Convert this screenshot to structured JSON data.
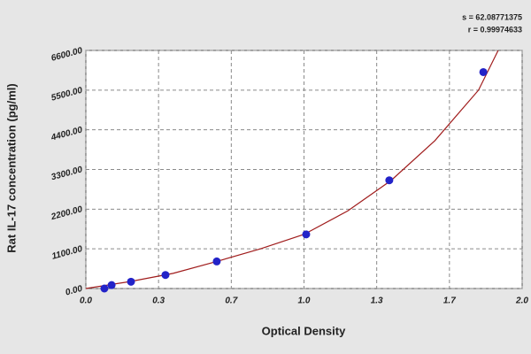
{
  "chart_data": {
    "type": "scatter",
    "x_label": "Optical Density",
    "y_label": "Rat IL-17 concentration (pg/ml)",
    "annotations": [
      "s = 62.08771375",
      "r = 0.99974633"
    ],
    "xlim": [
      0,
      2
    ],
    "ylim": [
      0,
      6600
    ],
    "xticks": [
      {
        "value": 0,
        "label": "0.0"
      },
      {
        "value": 0.3333,
        "label": "0.3"
      },
      {
        "value": 0.6667,
        "label": "0.7"
      },
      {
        "value": 1,
        "label": "1.0"
      },
      {
        "value": 1.3333,
        "label": "1.3"
      },
      {
        "value": 1.6667,
        "label": "1.7"
      },
      {
        "value": 2,
        "label": "2.0"
      }
    ],
    "yticks": [
      {
        "value": 0,
        "label": "0.00"
      },
      {
        "value": 1100,
        "label": "1100.00"
      },
      {
        "value": 2200,
        "label": "2200.00"
      },
      {
        "value": 3300,
        "label": "3300.00"
      },
      {
        "value": 4400,
        "label": "4400.00"
      },
      {
        "value": 5500,
        "label": "5500.00"
      },
      {
        "value": 6600,
        "label": "6600.00"
      }
    ],
    "grid": true,
    "series": [
      {
        "kind": "line",
        "color": "#a01c1c",
        "x": [
          0,
          0.2,
          0.4,
          0.6,
          0.8,
          1.0,
          1.2,
          1.4,
          1.6,
          1.8,
          1.89
        ],
        "values": [
          0,
          190,
          420,
          750,
          1100,
          1500,
          2150,
          3000,
          4100,
          5500,
          6600
        ]
      },
      {
        "kind": "points",
        "color": "#2323c8",
        "x": [
          0.085,
          0.118,
          0.207,
          0.365,
          0.6,
          1.01,
          1.391,
          1.822
        ],
        "values": [
          0,
          94,
          188,
          375,
          750,
          1500,
          3000,
          6000
        ]
      }
    ]
  }
}
